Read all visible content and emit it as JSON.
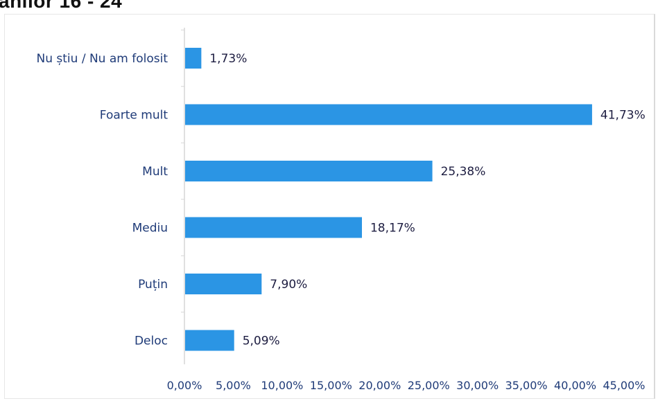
{
  "header": {
    "title_fragment": "anilor 16 - 24"
  },
  "colors": {
    "bar": "#2b95e4",
    "axis": "#d6d6d6",
    "category_text": "#1f3b78",
    "value_text": "#1c1c40"
  },
  "chart_data": {
    "type": "bar",
    "orientation": "horizontal",
    "title": "",
    "xlabel": "",
    "ylabel": "",
    "categories": [
      "Nu știu / Nu am folosit",
      "Foarte mult",
      "Mult",
      "Mediu",
      "Puțin",
      "Deloc"
    ],
    "values": [
      1.73,
      41.73,
      25.38,
      18.17,
      7.9,
      5.09
    ],
    "value_labels": [
      "1,73%",
      "41,73%",
      "25,38%",
      "18,17%",
      "7,90%",
      "5,09%"
    ],
    "xlim": [
      0,
      45
    ],
    "x_ticks": [
      0,
      5,
      10,
      15,
      20,
      25,
      30,
      35,
      40,
      45
    ],
    "x_tick_labels": [
      "0,00%",
      "5,00%",
      "10,00%",
      "15,00%",
      "20,00%",
      "25,00%",
      "30,00%",
      "35,00%",
      "40,00%",
      "45,00%"
    ],
    "grid": false,
    "legend": "none"
  }
}
